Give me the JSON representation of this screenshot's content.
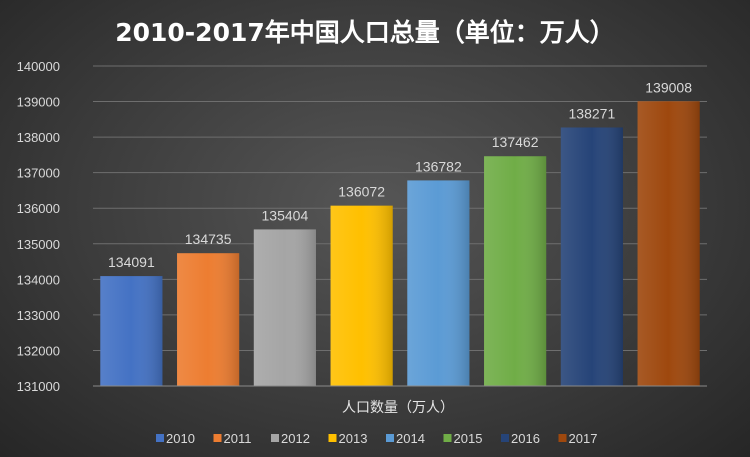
{
  "chart_data": {
    "type": "bar",
    "title": "2010-2017年中国人口总量（单位：万人）",
    "xlabel": "人口数量（万人）",
    "ylabel": "",
    "ylim": [
      131000,
      140000
    ],
    "yticks": [
      131000,
      132000,
      133000,
      134000,
      135000,
      136000,
      137000,
      138000,
      139000,
      140000
    ],
    "grid": true,
    "legend_position": "bottom",
    "categories": [
      "2010",
      "2011",
      "2012",
      "2013",
      "2014",
      "2015",
      "2016",
      "2017"
    ],
    "values": [
      134091,
      134735,
      135404,
      136072,
      136782,
      137462,
      138271,
      139008
    ],
    "colors": [
      "#4472c4",
      "#ed7d31",
      "#a5a5a5",
      "#ffc000",
      "#5b9bd5",
      "#70ad47",
      "#264478",
      "#9e480e"
    ]
  }
}
